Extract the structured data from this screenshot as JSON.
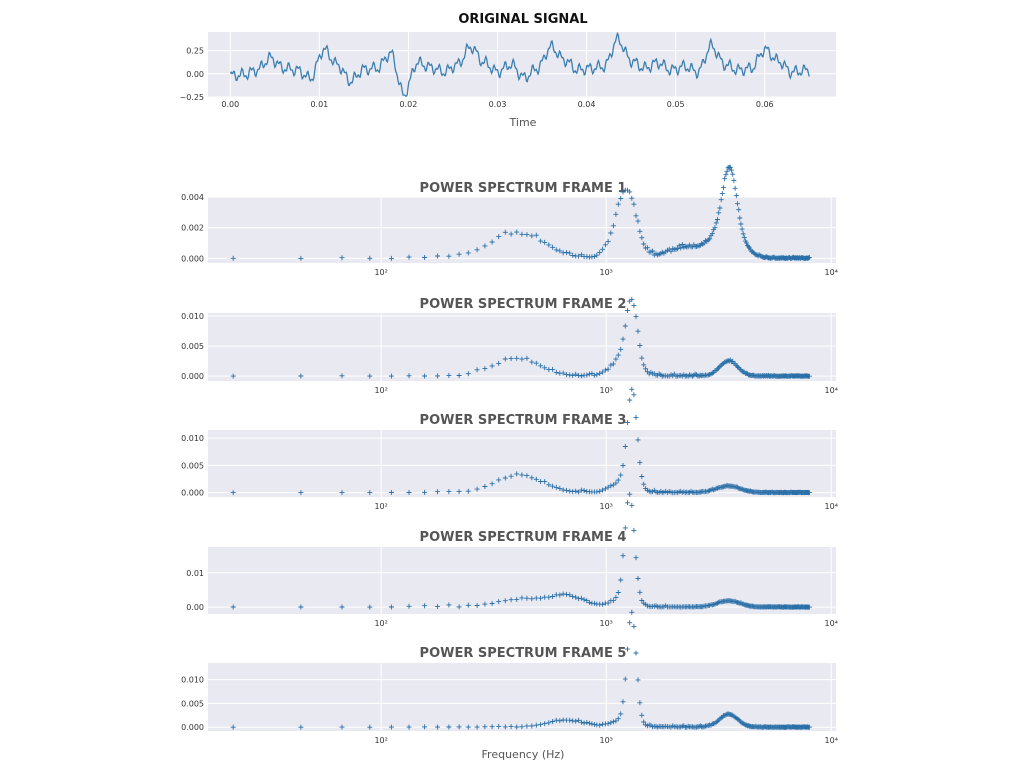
{
  "colors": {
    "line": "#3a7fb0",
    "marker": "#2a6fa8",
    "panel_bg": "#e9e9f1",
    "grid": "#ffffff",
    "title_main": "#111111",
    "title_sub": "#555555"
  },
  "chart_data": [
    {
      "type": "line",
      "title": "ORIGINAL SIGNAL",
      "xlabel": "Time",
      "ylabel": "",
      "xlim": [
        -0.0025,
        0.068
      ],
      "ylim": [
        -0.25,
        0.45
      ],
      "xticks": [
        0.0,
        0.01,
        0.02,
        0.03,
        0.04,
        0.05,
        0.06
      ],
      "xtick_labels": [
        "0.00",
        "0.01",
        "0.02",
        "0.03",
        "0.04",
        "0.05",
        "0.06"
      ],
      "yticks": [
        -0.25,
        0.0,
        0.25
      ],
      "ytick_labels": [
        "−0.25",
        "0.00",
        "0.25"
      ],
      "grid": true,
      "series": [
        {
          "x": [
            0.0,
            0.0015,
            0.003,
            0.0045,
            0.006,
            0.0075,
            0.009,
            0.0105,
            0.012,
            0.0135,
            0.015,
            0.0165,
            0.018,
            0.0195,
            0.021,
            0.0225,
            0.024,
            0.0255,
            0.027,
            0.0285,
            0.03,
            0.0315,
            0.033,
            0.0345,
            0.036,
            0.0375,
            0.039,
            0.0405,
            0.042,
            0.0435,
            0.045,
            0.0465,
            0.048,
            0.0495,
            0.051,
            0.0525,
            0.054,
            0.0555,
            0.057,
            0.0585,
            0.06,
            0.0615,
            0.063,
            0.065
          ],
          "y": [
            -0.02,
            -0.01,
            0.04,
            0.17,
            0.06,
            0.04,
            -0.05,
            0.26,
            0.1,
            -0.08,
            0.05,
            0.06,
            0.22,
            -0.23,
            0.12,
            0.07,
            0.02,
            0.1,
            0.29,
            0.12,
            0.02,
            0.1,
            -0.04,
            0.06,
            0.29,
            0.15,
            0.04,
            0.06,
            0.08,
            0.37,
            0.14,
            0.06,
            0.12,
            0.04,
            0.08,
            0.02,
            0.3,
            0.1,
            0.04,
            0.06,
            0.26,
            0.14,
            0.02,
            0.04
          ]
        }
      ]
    },
    {
      "type": "scatter",
      "title": "POWER SPECTRUM FRAME 1",
      "xscale": "log",
      "xlim": [
        17,
        10500
      ],
      "ylim": [
        -0.0003,
        0.004
      ],
      "xtick_labels": [
        "10²",
        "10³",
        "10⁴"
      ],
      "yticks": [
        0.0,
        0.002,
        0.004
      ],
      "ytick_labels": [
        "0.000",
        "0.002",
        "0.004"
      ],
      "grid": true,
      "peaks": [
        {
          "f": 1250,
          "amp": 0.0027,
          "w": 0.04
        },
        {
          "f": 1180,
          "amp": 0.0019,
          "w": 0.05
        },
        {
          "f": 3540,
          "amp": 0.0038,
          "w": 0.03
        },
        {
          "f": 3450,
          "amp": 0.0021,
          "w": 0.06
        },
        {
          "f": 2300,
          "amp": 0.0007,
          "w": 0.08
        },
        {
          "f": 400,
          "amp": 0.0016,
          "w": 0.12
        }
      ],
      "noise_amp": 0.0004,
      "seed": 11
    },
    {
      "type": "scatter",
      "title": "POWER SPECTRUM FRAME 2",
      "xscale": "log",
      "xlim": [
        17,
        10500
      ],
      "ylim": [
        -0.0008,
        0.0105
      ],
      "xtick_labels": [
        "10²",
        "10³",
        "10⁴"
      ],
      "yticks": [
        0.0,
        0.005,
        0.01
      ],
      "ytick_labels": [
        "0.000",
        "0.005",
        "0.010"
      ],
      "grid": true,
      "peaks": [
        {
          "f": 1300,
          "amp": 0.0103,
          "w": 0.025
        },
        {
          "f": 1200,
          "amp": 0.0031,
          "w": 0.05
        },
        {
          "f": 3500,
          "amp": 0.0025,
          "w": 0.04
        },
        {
          "f": 400,
          "amp": 0.0029,
          "w": 0.1
        }
      ],
      "noise_amp": 0.0006,
      "seed": 23
    },
    {
      "type": "scatter",
      "title": "POWER SPECTRUM FRAME 3",
      "xscale": "log",
      "xlim": [
        17,
        10500
      ],
      "ylim": [
        -0.0008,
        0.0115
      ],
      "xtick_labels": [
        "10²",
        "10³",
        "10⁴"
      ],
      "yticks": [
        0.0,
        0.005,
        0.01
      ],
      "ytick_labels": [
        "0.000",
        "0.005",
        "0.010"
      ],
      "grid": true,
      "peaks": [
        {
          "f": 1290,
          "amp": 0.0113,
          "w": 0.02
        },
        {
          "f": 1330,
          "amp": 0.0068,
          "w": 0.02
        },
        {
          "f": 1200,
          "amp": 0.0022,
          "w": 0.05
        },
        {
          "f": 410,
          "amp": 0.0032,
          "w": 0.1
        },
        {
          "f": 3500,
          "amp": 0.0012,
          "w": 0.05
        }
      ],
      "noise_amp": 0.0005,
      "seed": 37
    },
    {
      "type": "scatter",
      "title": "POWER SPECTRUM FRAME 4",
      "xscale": "log",
      "xlim": [
        17,
        10500
      ],
      "ylim": [
        -0.002,
        0.0175
      ],
      "xtick_labels": [
        "10²",
        "10³",
        "10⁴"
      ],
      "yticks": [
        0.0,
        0.01
      ],
      "ytick_labels": [
        "0.00",
        "0.01"
      ],
      "grid": true,
      "peaks": [
        {
          "f": 1290,
          "amp": 0.0172,
          "w": 0.02
        },
        {
          "f": 1250,
          "amp": 0.0152,
          "w": 0.02
        },
        {
          "f": 1200,
          "amp": 0.0026,
          "w": 0.05
        },
        {
          "f": 660,
          "amp": 0.0031,
          "w": 0.08
        },
        {
          "f": 410,
          "amp": 0.0021,
          "w": 0.1
        },
        {
          "f": 3500,
          "amp": 0.0018,
          "w": 0.05
        }
      ],
      "noise_amp": 0.0007,
      "seed": 41
    },
    {
      "type": "scatter",
      "title": "POWER SPECTRUM FRAME 5",
      "xscale": "log",
      "xlim": [
        17,
        10500
      ],
      "ylim": [
        -0.0008,
        0.0135
      ],
      "xtick_labels": [
        "10²",
        "10³",
        "10⁴"
      ],
      "yticks": [
        0.0,
        0.005,
        0.01
      ],
      "ytick_labels": [
        "0.000",
        "0.005",
        "0.010"
      ],
      "xlabel": "Frequency (Hz)",
      "grid": true,
      "peaks": [
        {
          "f": 1290,
          "amp": 0.0133,
          "w": 0.02
        },
        {
          "f": 1310,
          "amp": 0.0096,
          "w": 0.02
        },
        {
          "f": 1200,
          "amp": 0.0016,
          "w": 0.05
        },
        {
          "f": 3500,
          "amp": 0.0027,
          "w": 0.04
        },
        {
          "f": 660,
          "amp": 0.0014,
          "w": 0.08
        }
      ],
      "noise_amp": 0.0005,
      "seed": 53
    }
  ]
}
